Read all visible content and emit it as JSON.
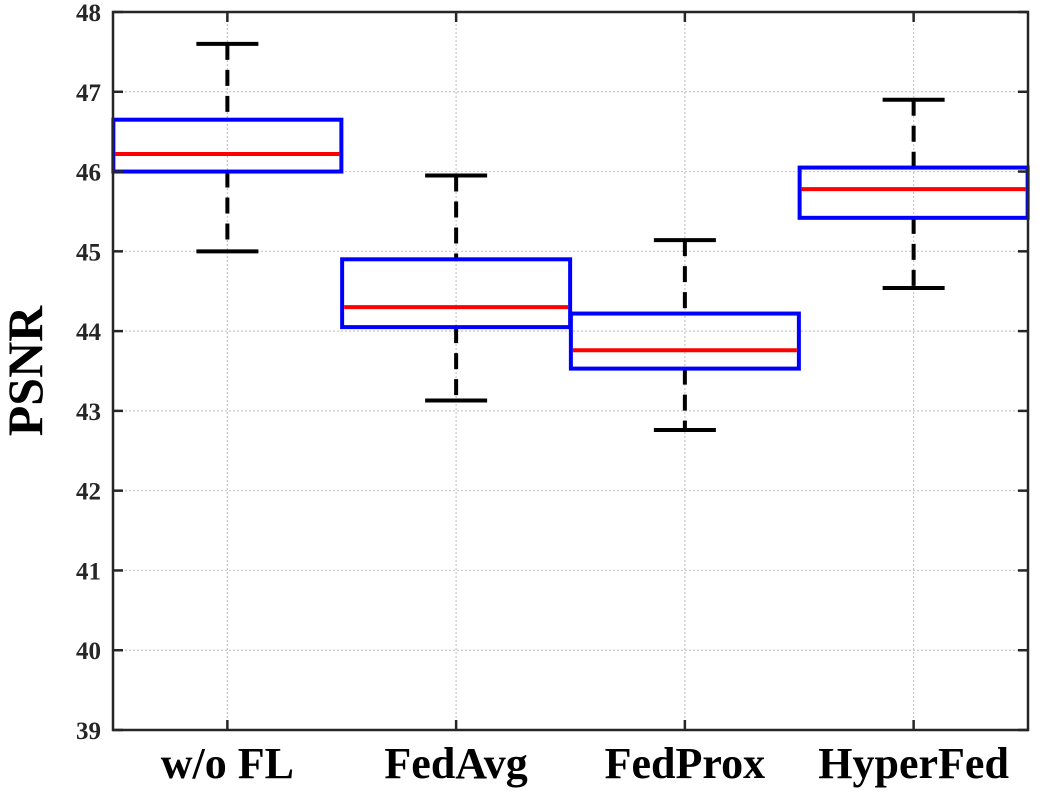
{
  "chart_data": {
    "type": "boxplot",
    "title": "",
    "xlabel": "",
    "ylabel": "PSNR",
    "ylim": [
      39,
      48
    ],
    "yticks": [
      39,
      40,
      41,
      42,
      43,
      44,
      45,
      46,
      47,
      48
    ],
    "grid": true,
    "categories": [
      "w/o FL",
      "FedAvg",
      "FedProx",
      "HyperFed"
    ],
    "boxes": [
      {
        "category": "w/o FL",
        "whisker_low": 45.0,
        "q1": 46.0,
        "median": 46.22,
        "q3": 46.65,
        "whisker_high": 47.6
      },
      {
        "category": "FedAvg",
        "whisker_low": 43.13,
        "q1": 44.05,
        "median": 44.3,
        "q3": 44.9,
        "whisker_high": 45.95
      },
      {
        "category": "FedProx",
        "whisker_low": 42.76,
        "q1": 43.53,
        "median": 43.76,
        "q3": 44.22,
        "whisker_high": 45.14
      },
      {
        "category": "HyperFed",
        "whisker_low": 44.54,
        "q1": 45.42,
        "median": 45.78,
        "q3": 46.05,
        "whisker_high": 46.9
      }
    ],
    "colors": {
      "box": "#0000ff",
      "median": "#ff0000",
      "whisker": "#000000",
      "grid": "#c8c8c8",
      "axis": "#262626"
    }
  }
}
